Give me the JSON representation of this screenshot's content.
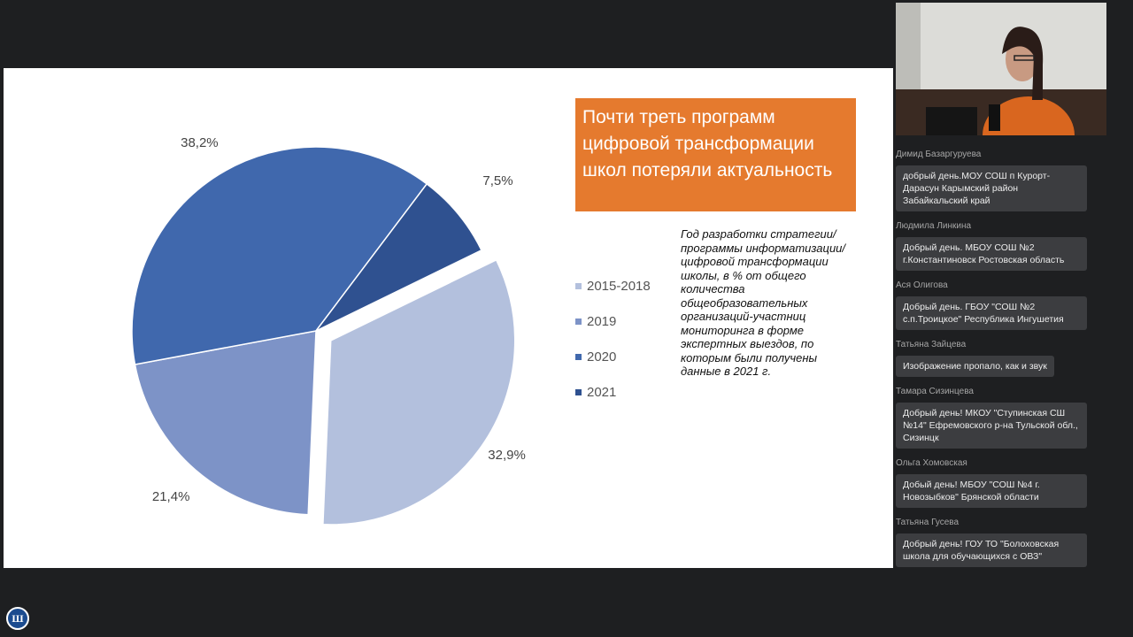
{
  "slide": {
    "title": "Почти треть программ цифровой трансформации школ потеряли актуальность",
    "note": "Год разработки стратегии/ программы информатизации/ цифровой трансформации школы, в % от общего количества общеобразовательных организаций-участниц мониторинга в форме экспертных выездов, по которым были получены данные в 2021 г."
  },
  "chart_data": {
    "type": "pie",
    "slices": [
      {
        "category": "2015-2018",
        "value": 32.9,
        "label": "32,9%",
        "color": "#b3c0dd",
        "exploded": true
      },
      {
        "category": "2019",
        "value": 21.4,
        "label": "21,4%",
        "color": "#7d93c7"
      },
      {
        "category": "2020",
        "value": 38.2,
        "label": "38,2%",
        "color": "#4068ad"
      },
      {
        "category": "2021",
        "value": 7.5,
        "label": "7,5%",
        "color": "#2f5190"
      }
    ],
    "legend": [
      "2015-2018",
      "2019",
      "2020",
      "2021"
    ],
    "legend_position": "right"
  },
  "webcam": {
    "icon": "presenter-video"
  },
  "chat": {
    "messages": [
      {
        "author": "Димид Базаргуруева",
        "text": "добрый день.МОУ СОШ п Курорт-Дарасун Карымский район Забайкальский край"
      },
      {
        "author": "Людмила Линкина",
        "text": "Добрый день. МБОУ СОШ №2 г.Константиновск Ростовская область"
      },
      {
        "author": "Ася Олигова",
        "text": "Добрый день. ГБОУ \"СОШ №2 с.п.Троицкое\" Республика Ингушетия"
      },
      {
        "author": "Татьяна Зайцева",
        "text": "Изображение пропало, как и звук"
      },
      {
        "author": "Тамара Сизинцева",
        "text": "Добрый день! МКОУ \"Ступинская СШ №14\" Ефремовского р-на Тульской обл., Сизинцк"
      },
      {
        "author": "Ольга Хомовская",
        "text": "Добый день! МБОУ \"СОШ №4 г. Новозыбков\" Брянской области"
      },
      {
        "author": "Татьяна Гусева",
        "text": "Добрый день! ГОУ ТО \"Болоховская школа для обучающихся с ОВЗ\""
      }
    ]
  },
  "logo": {
    "text": "Ш",
    "icon": "hse-logo"
  }
}
